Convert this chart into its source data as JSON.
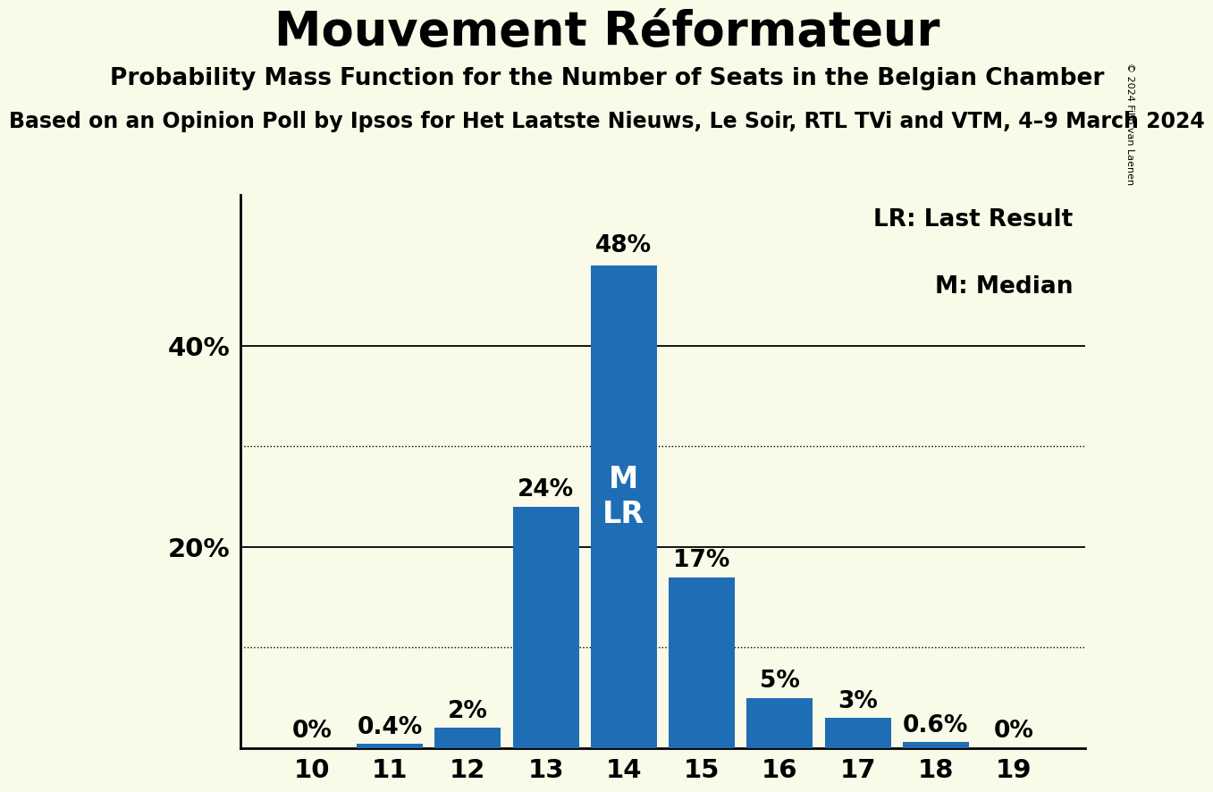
{
  "title": "Mouvement Réformateur",
  "subtitle": "Probability Mass Function for the Number of Seats in the Belgian Chamber",
  "sub_subtitle": "Based on an Opinion Poll by Ipsos for Het Laatste Nieuws, Le Soir, RTL TVi and VTM, 4–9 March 2024",
  "copyright": "© 2024 Filip van Laenen",
  "categories": [
    10,
    11,
    12,
    13,
    14,
    15,
    16,
    17,
    18,
    19
  ],
  "values": [
    0.0,
    0.4,
    2.0,
    24.0,
    48.0,
    17.0,
    5.0,
    3.0,
    0.6,
    0.0
  ],
  "bar_color": "#1f6eb5",
  "background_color": "#fafae8",
  "ylim": [
    0,
    55
  ],
  "solid_yticks": [
    20,
    40
  ],
  "dotted_yticks": [
    10,
    30
  ],
  "bar_labels": [
    "0%",
    "0.4%",
    "2%",
    "24%",
    "48%",
    "17%",
    "5%",
    "3%",
    "0.6%",
    "0%"
  ],
  "median_seat": 14,
  "lr_seat": 14,
  "legend_lr": "LR: Last Result",
  "legend_m": "M: Median",
  "title_fontsize": 38,
  "subtitle_fontsize": 19,
  "sub_subtitle_fontsize": 17,
  "bar_label_fontsize": 19,
  "tick_fontsize": 21,
  "ytick_fontsize": 21
}
